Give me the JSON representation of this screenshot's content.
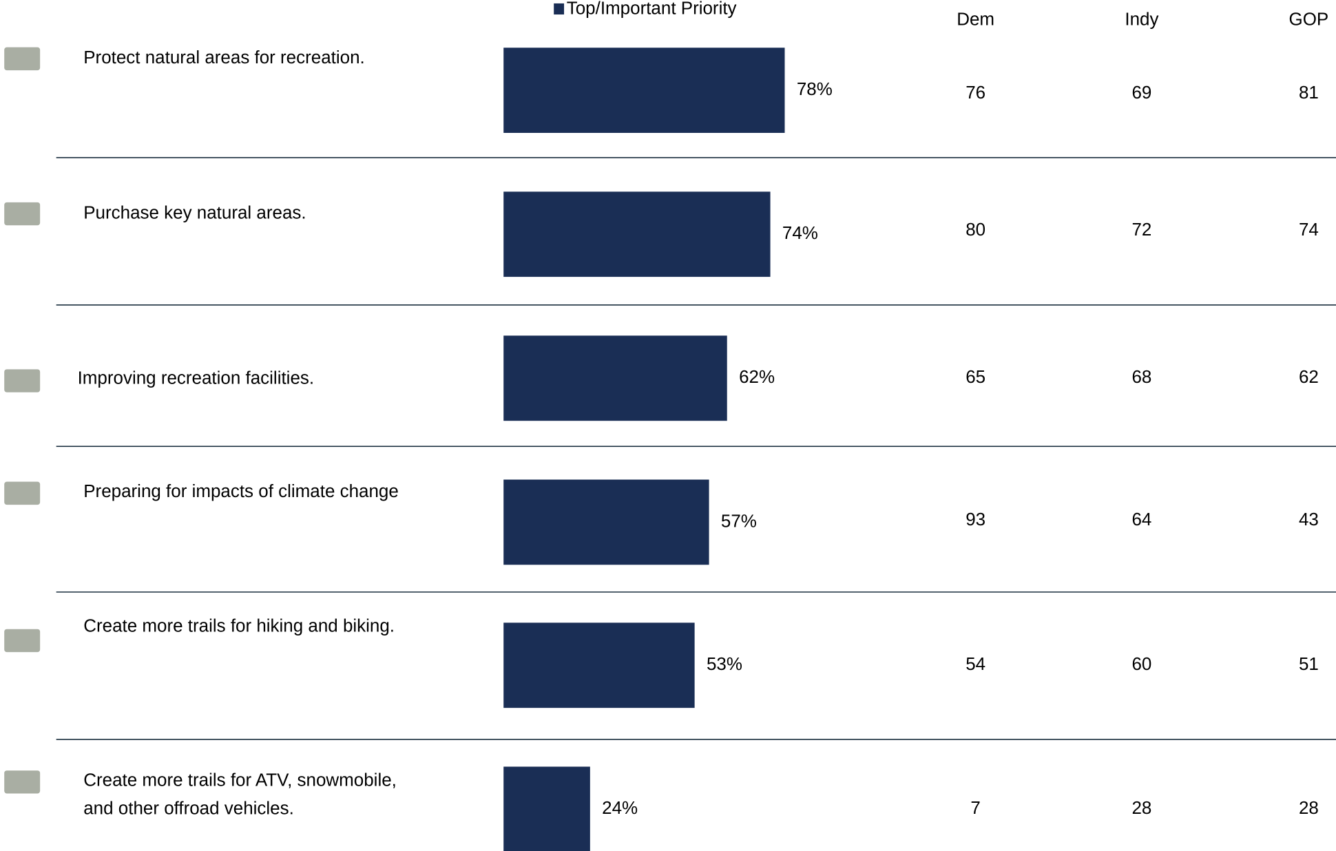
{
  "chart_data": {
    "type": "bar",
    "orientation": "horizontal",
    "categories": [
      "Protect natural areas for recreation.",
      "Purchase key natural areas.",
      "Improving recreation facilities.",
      "Preparing for impacts of climate change",
      "Create more trails for hiking and biking.",
      "Create more trails for ATV, snowmobile,\nand other offroad vehicles."
    ],
    "series": [
      {
        "name": "Top/Important Priority",
        "color": "#1a2e55",
        "values": [
          78,
          74,
          62,
          57,
          53,
          24
        ],
        "value_labels": [
          "78%",
          "74%",
          "62%",
          "57%",
          "53%",
          "24%"
        ]
      }
    ],
    "breakdown": {
      "columns": [
        "Dem",
        "Indy",
        "GOP"
      ],
      "values": [
        [
          76,
          69,
          81
        ],
        [
          80,
          72,
          74
        ],
        [
          65,
          68,
          62
        ],
        [
          93,
          64,
          43
        ],
        [
          54,
          60,
          51
        ],
        [
          7,
          28,
          28
        ]
      ]
    },
    "marker_color": "#a9aea3"
  }
}
